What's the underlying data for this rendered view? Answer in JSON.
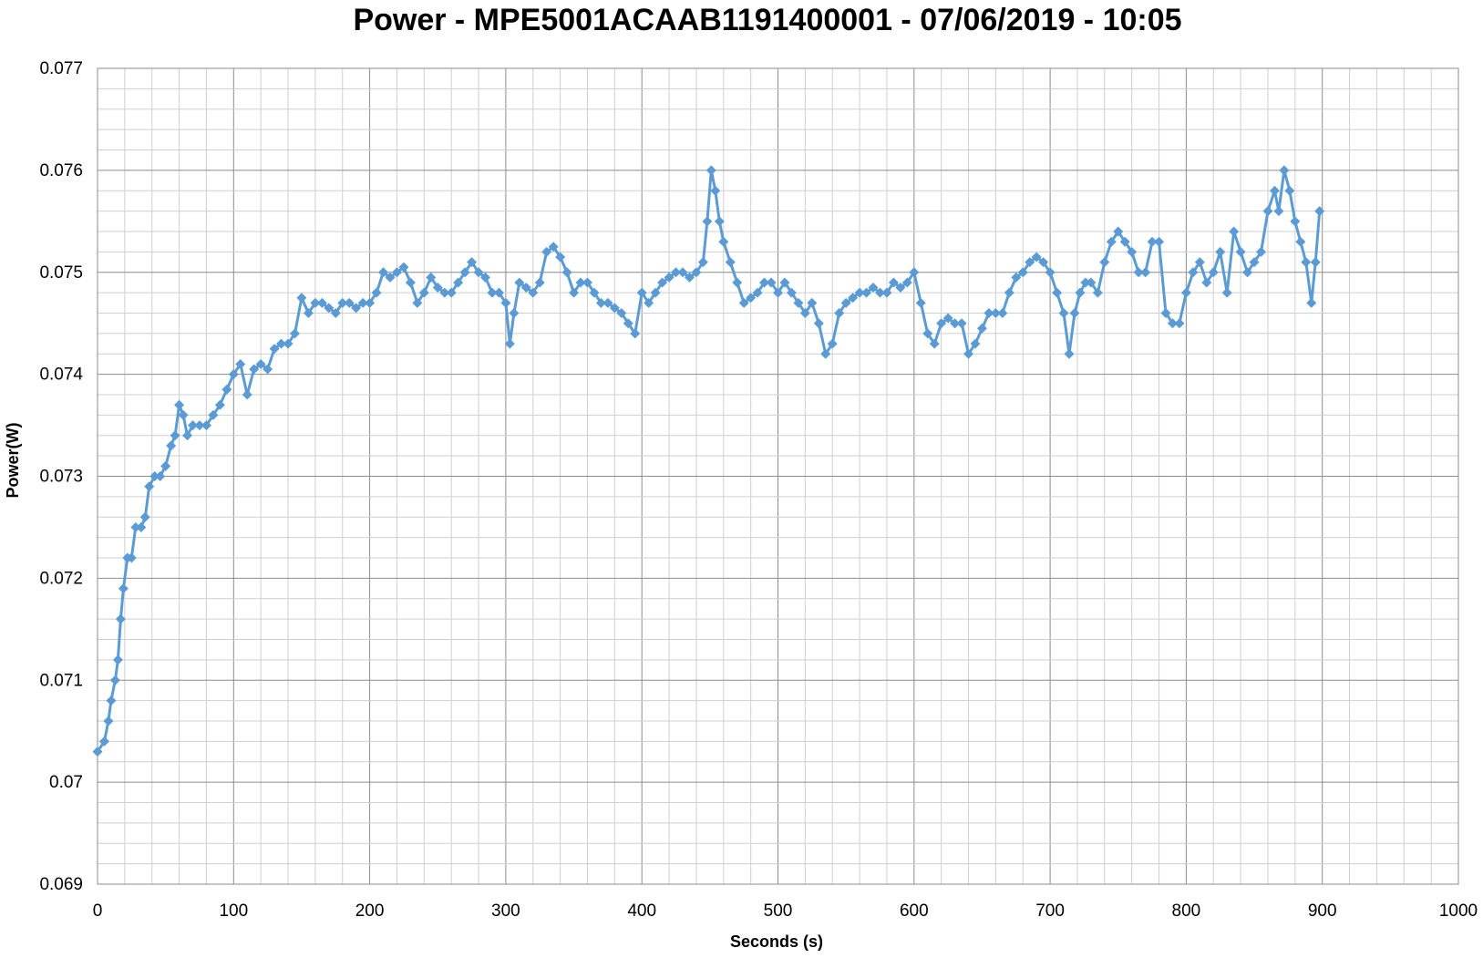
{
  "chart_data": {
    "type": "line",
    "title": "Power - MPE5001ACAAB1191400001 - 07/06/2019 - 10:05",
    "xlabel": "Seconds (s)",
    "ylabel": "Power(W)",
    "xlim": [
      0,
      1000
    ],
    "ylim": [
      0.069,
      0.077
    ],
    "x_ticks": [
      "0",
      "100",
      "200",
      "300",
      "400",
      "500",
      "600",
      "700",
      "800",
      "900",
      "1000"
    ],
    "y_ticks": [
      "0.069",
      "0.07",
      "0.071",
      "0.072",
      "0.073",
      "0.074",
      "0.075",
      "0.076",
      "0.077"
    ],
    "grid": true,
    "legend": "none",
    "color": "#5b9bd5",
    "marker": "diamond",
    "series": [
      {
        "points": [
          [
            0,
            0.0703
          ],
          [
            5,
            0.0704
          ],
          [
            8,
            0.0706
          ],
          [
            10,
            0.0708
          ],
          [
            13,
            0.071
          ],
          [
            15,
            0.0712
          ],
          [
            17,
            0.0716
          ],
          [
            19,
            0.0719
          ],
          [
            22,
            0.0722
          ],
          [
            25,
            0.0722
          ],
          [
            28,
            0.0725
          ],
          [
            32,
            0.0725
          ],
          [
            35,
            0.0726
          ],
          [
            38,
            0.0729
          ],
          [
            42,
            0.073
          ],
          [
            46,
            0.073
          ],
          [
            50,
            0.0731
          ],
          [
            54,
            0.0733
          ],
          [
            57,
            0.0734
          ],
          [
            60,
            0.0737
          ],
          [
            63,
            0.0736
          ],
          [
            66,
            0.0734
          ],
          [
            70,
            0.0735
          ],
          [
            75,
            0.0735
          ],
          [
            80,
            0.0735
          ],
          [
            85,
            0.0736
          ],
          [
            90,
            0.0737
          ],
          [
            95,
            0.07385
          ],
          [
            100,
            0.074
          ],
          [
            105,
            0.0741
          ],
          [
            110,
            0.0738
          ],
          [
            115,
            0.07405
          ],
          [
            120,
            0.0741
          ],
          [
            125,
            0.07405
          ],
          [
            130,
            0.07425
          ],
          [
            135,
            0.0743
          ],
          [
            140,
            0.0743
          ],
          [
            145,
            0.0744
          ],
          [
            150,
            0.07475
          ],
          [
            155,
            0.0746
          ],
          [
            160,
            0.0747
          ],
          [
            165,
            0.0747
          ],
          [
            170,
            0.07465
          ],
          [
            175,
            0.0746
          ],
          [
            180,
            0.0747
          ],
          [
            185,
            0.0747
          ],
          [
            190,
            0.07465
          ],
          [
            195,
            0.0747
          ],
          [
            200,
            0.0747
          ],
          [
            205,
            0.0748
          ],
          [
            210,
            0.075
          ],
          [
            215,
            0.07495
          ],
          [
            220,
            0.075
          ],
          [
            225,
            0.07505
          ],
          [
            230,
            0.0749
          ],
          [
            235,
            0.0747
          ],
          [
            240,
            0.0748
          ],
          [
            245,
            0.07495
          ],
          [
            250,
            0.07485
          ],
          [
            255,
            0.0748
          ],
          [
            260,
            0.0748
          ],
          [
            265,
            0.0749
          ],
          [
            270,
            0.075
          ],
          [
            275,
            0.0751
          ],
          [
            280,
            0.075
          ],
          [
            285,
            0.07495
          ],
          [
            290,
            0.0748
          ],
          [
            295,
            0.0748
          ],
          [
            300,
            0.0747
          ],
          [
            303,
            0.0743
          ],
          [
            306,
            0.0746
          ],
          [
            310,
            0.0749
          ],
          [
            315,
            0.07485
          ],
          [
            320,
            0.0748
          ],
          [
            325,
            0.0749
          ],
          [
            330,
            0.0752
          ],
          [
            335,
            0.07525
          ],
          [
            340,
            0.07515
          ],
          [
            345,
            0.075
          ],
          [
            350,
            0.0748
          ],
          [
            355,
            0.0749
          ],
          [
            360,
            0.0749
          ],
          [
            365,
            0.0748
          ],
          [
            370,
            0.0747
          ],
          [
            375,
            0.0747
          ],
          [
            380,
            0.07465
          ],
          [
            385,
            0.0746
          ],
          [
            390,
            0.0745
          ],
          [
            395,
            0.0744
          ],
          [
            400,
            0.0748
          ],
          [
            405,
            0.0747
          ],
          [
            410,
            0.0748
          ],
          [
            415,
            0.0749
          ],
          [
            420,
            0.07495
          ],
          [
            425,
            0.075
          ],
          [
            430,
            0.075
          ],
          [
            435,
            0.07495
          ],
          [
            440,
            0.075
          ],
          [
            445,
            0.0751
          ],
          [
            448,
            0.0755
          ],
          [
            451,
            0.076
          ],
          [
            454,
            0.0758
          ],
          [
            457,
            0.0755
          ],
          [
            460,
            0.0753
          ],
          [
            465,
            0.0751
          ],
          [
            470,
            0.0749
          ],
          [
            475,
            0.0747
          ],
          [
            480,
            0.07475
          ],
          [
            485,
            0.0748
          ],
          [
            490,
            0.0749
          ],
          [
            495,
            0.0749
          ],
          [
            500,
            0.0748
          ],
          [
            505,
            0.0749
          ],
          [
            510,
            0.0748
          ],
          [
            515,
            0.0747
          ],
          [
            520,
            0.0746
          ],
          [
            525,
            0.0747
          ],
          [
            530,
            0.0745
          ],
          [
            535,
            0.0742
          ],
          [
            540,
            0.0743
          ],
          [
            545,
            0.0746
          ],
          [
            550,
            0.0747
          ],
          [
            555,
            0.07475
          ],
          [
            560,
            0.0748
          ],
          [
            565,
            0.0748
          ],
          [
            570,
            0.07485
          ],
          [
            575,
            0.0748
          ],
          [
            580,
            0.0748
          ],
          [
            585,
            0.0749
          ],
          [
            590,
            0.07485
          ],
          [
            595,
            0.0749
          ],
          [
            600,
            0.075
          ],
          [
            605,
            0.0747
          ],
          [
            610,
            0.0744
          ],
          [
            615,
            0.0743
          ],
          [
            620,
            0.0745
          ],
          [
            625,
            0.07455
          ],
          [
            630,
            0.0745
          ],
          [
            635,
            0.0745
          ],
          [
            640,
            0.0742
          ],
          [
            645,
            0.0743
          ],
          [
            650,
            0.07445
          ],
          [
            655,
            0.0746
          ],
          [
            660,
            0.0746
          ],
          [
            665,
            0.0746
          ],
          [
            670,
            0.0748
          ],
          [
            675,
            0.07495
          ],
          [
            680,
            0.075
          ],
          [
            685,
            0.0751
          ],
          [
            690,
            0.07515
          ],
          [
            695,
            0.0751
          ],
          [
            700,
            0.075
          ],
          [
            705,
            0.0748
          ],
          [
            710,
            0.0746
          ],
          [
            714,
            0.0742
          ],
          [
            718,
            0.0746
          ],
          [
            722,
            0.0748
          ],
          [
            726,
            0.0749
          ],
          [
            730,
            0.0749
          ],
          [
            735,
            0.0748
          ],
          [
            740,
            0.0751
          ],
          [
            745,
            0.0753
          ],
          [
            750,
            0.0754
          ],
          [
            755,
            0.0753
          ],
          [
            760,
            0.0752
          ],
          [
            765,
            0.075
          ],
          [
            770,
            0.075
          ],
          [
            775,
            0.0753
          ],
          [
            780,
            0.0753
          ],
          [
            785,
            0.0746
          ],
          [
            790,
            0.0745
          ],
          [
            795,
            0.0745
          ],
          [
            800,
            0.0748
          ],
          [
            805,
            0.075
          ],
          [
            810,
            0.0751
          ],
          [
            815,
            0.0749
          ],
          [
            820,
            0.075
          ],
          [
            825,
            0.0752
          ],
          [
            830,
            0.0748
          ],
          [
            835,
            0.0754
          ],
          [
            840,
            0.0752
          ],
          [
            845,
            0.075
          ],
          [
            850,
            0.0751
          ],
          [
            855,
            0.0752
          ],
          [
            860,
            0.0756
          ],
          [
            865,
            0.0758
          ],
          [
            868,
            0.0756
          ],
          [
            872,
            0.076
          ],
          [
            876,
            0.0758
          ],
          [
            880,
            0.0755
          ],
          [
            884,
            0.0753
          ],
          [
            888,
            0.0751
          ],
          [
            892,
            0.0747
          ],
          [
            895,
            0.0751
          ],
          [
            898,
            0.0756
          ]
        ]
      }
    ]
  }
}
